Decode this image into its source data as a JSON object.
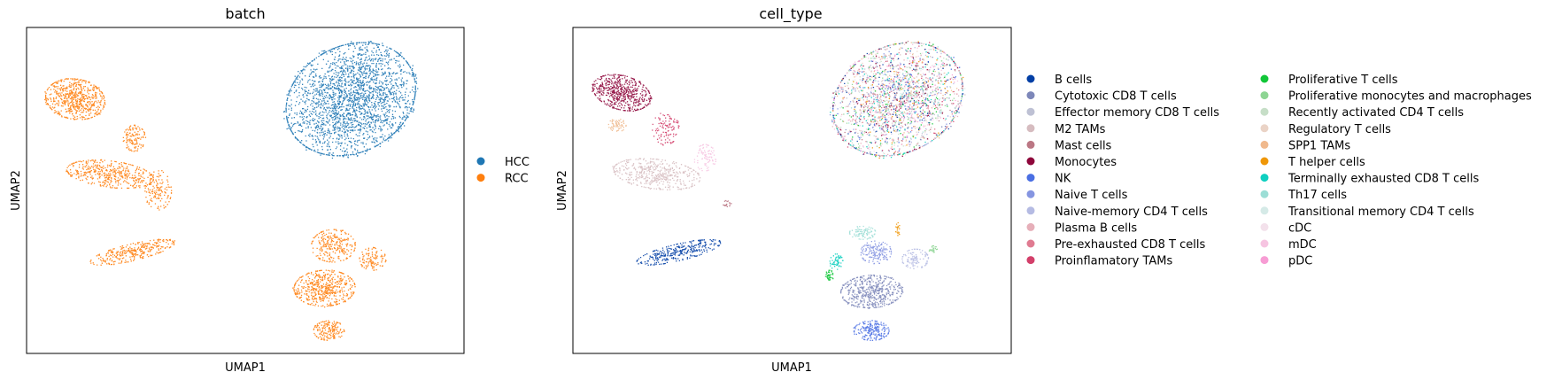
{
  "chart_data": [
    {
      "type": "scatter",
      "title": "batch",
      "xlabel": "UMAP1",
      "ylabel": "UMAP2",
      "grid": false,
      "legend_placement": "right",
      "series": [
        {
          "name": "HCC",
          "color": "#1f77b4"
        },
        {
          "name": "RCC",
          "color": "#ff7f0e"
        }
      ],
      "clusters": [
        {
          "series": "HCC",
          "cx": 0.74,
          "cy": 0.78,
          "rx": 0.14,
          "ry": 0.18,
          "n": 2600,
          "rot": -25
        },
        {
          "series": "RCC",
          "cx": 0.11,
          "cy": 0.78,
          "rx": 0.07,
          "ry": 0.06,
          "n": 650,
          "rot": -30
        },
        {
          "series": "RCC",
          "cx": 0.19,
          "cy": 0.55,
          "rx": 0.1,
          "ry": 0.04,
          "n": 450,
          "rot": -10
        },
        {
          "series": "RCC",
          "cx": 0.245,
          "cy": 0.66,
          "rx": 0.025,
          "ry": 0.04,
          "n": 120,
          "rot": 0
        },
        {
          "series": "RCC",
          "cx": 0.3,
          "cy": 0.5,
          "rx": 0.03,
          "ry": 0.06,
          "n": 130,
          "rot": 0
        },
        {
          "series": "RCC",
          "cx": 0.24,
          "cy": 0.31,
          "rx": 0.1,
          "ry": 0.025,
          "n": 320,
          "rot": 18
        },
        {
          "series": "RCC",
          "cx": 0.68,
          "cy": 0.2,
          "rx": 0.07,
          "ry": 0.055,
          "n": 520,
          "rot": 5
        },
        {
          "series": "RCC",
          "cx": 0.7,
          "cy": 0.33,
          "rx": 0.05,
          "ry": 0.05,
          "n": 260,
          "rot": 0
        },
        {
          "series": "RCC",
          "cx": 0.79,
          "cy": 0.29,
          "rx": 0.03,
          "ry": 0.035,
          "n": 110,
          "rot": 0
        },
        {
          "series": "RCC",
          "cx": 0.69,
          "cy": 0.07,
          "rx": 0.035,
          "ry": 0.03,
          "n": 170,
          "rot": 0
        }
      ]
    },
    {
      "type": "scatter",
      "title": "cell_type",
      "xlabel": "UMAP1",
      "ylabel": "UMAP2",
      "grid": false,
      "legend_placement": "right",
      "series": [
        {
          "name": "B cells",
          "color": "#023fa5"
        },
        {
          "name": "Cytotoxic CD8 T cells",
          "color": "#7d87b9"
        },
        {
          "name": "Effector memory CD8 T cells",
          "color": "#bec1d4"
        },
        {
          "name": "M2 TAMs",
          "color": "#d6bcc0"
        },
        {
          "name": "Mast cells",
          "color": "#bb7784"
        },
        {
          "name": "Monocytes",
          "color": "#8e063b"
        },
        {
          "name": "NK",
          "color": "#4a6fe3"
        },
        {
          "name": "Naive T cells",
          "color": "#8595e1"
        },
        {
          "name": "Naive-memory CD4 T cells",
          "color": "#b5bbe3"
        },
        {
          "name": "Plasma B cells",
          "color": "#e6afb9"
        },
        {
          "name": "Pre-exhausted CD8 T cells",
          "color": "#e07b91"
        },
        {
          "name": "Proinflamatory TAMs",
          "color": "#d33f6a"
        },
        {
          "name": "Proliferative T cells",
          "color": "#11c638"
        },
        {
          "name": "Proliferative monocytes and macrophages",
          "color": "#8dd593"
        },
        {
          "name": "Recently activated CD4 T cells",
          "color": "#c6dec7"
        },
        {
          "name": "Regulatory T cells",
          "color": "#ead3c6"
        },
        {
          "name": "SPP1 TAMs",
          "color": "#f0b98d"
        },
        {
          "name": "T helper cells",
          "color": "#ef9708"
        },
        {
          "name": "Terminally exhausted CD8 T cells",
          "color": "#0fcfc0"
        },
        {
          "name": "Th17 cells",
          "color": "#9cded6"
        },
        {
          "name": "Transitional memory CD4 T cells",
          "color": "#d5eae7"
        },
        {
          "name": "cDC",
          "color": "#f3e1eb"
        },
        {
          "name": "mDC",
          "color": "#f6c4e1"
        },
        {
          "name": "pDC",
          "color": "#f79cd4"
        }
      ],
      "clusters": [
        {
          "series": "mixed",
          "cx": 0.74,
          "cy": 0.78,
          "rx": 0.14,
          "ry": 0.18,
          "n": 2600,
          "rot": -25
        },
        {
          "series": "Monocytes",
          "cx": 0.11,
          "cy": 0.8,
          "rx": 0.07,
          "ry": 0.05,
          "n": 560,
          "rot": -30
        },
        {
          "series": "SPP1 TAMs",
          "cx": 0.1,
          "cy": 0.7,
          "rx": 0.02,
          "ry": 0.02,
          "n": 60,
          "rot": 0
        },
        {
          "series": "Proinflamatory TAMs",
          "cx": 0.21,
          "cy": 0.69,
          "rx": 0.03,
          "ry": 0.05,
          "n": 110,
          "rot": 0
        },
        {
          "series": "mDC",
          "cx": 0.3,
          "cy": 0.6,
          "rx": 0.025,
          "ry": 0.04,
          "n": 90,
          "rot": 0
        },
        {
          "series": "M2 TAMs",
          "cx": 0.19,
          "cy": 0.55,
          "rx": 0.1,
          "ry": 0.045,
          "n": 450,
          "rot": -10
        },
        {
          "series": "Mast cells",
          "cx": 0.35,
          "cy": 0.46,
          "rx": 0.01,
          "ry": 0.01,
          "n": 18,
          "rot": 0
        },
        {
          "series": "B cells",
          "cx": 0.24,
          "cy": 0.31,
          "rx": 0.1,
          "ry": 0.025,
          "n": 320,
          "rot": 18
        },
        {
          "series": "Cytotoxic CD8 T cells",
          "cx": 0.68,
          "cy": 0.19,
          "rx": 0.07,
          "ry": 0.05,
          "n": 520,
          "rot": 5
        },
        {
          "series": "Naive T cells",
          "cx": 0.69,
          "cy": 0.31,
          "rx": 0.035,
          "ry": 0.035,
          "n": 160,
          "rot": 0
        },
        {
          "series": "Naive-memory CD4 T cells",
          "cx": 0.78,
          "cy": 0.29,
          "rx": 0.03,
          "ry": 0.03,
          "n": 110,
          "rot": 0
        },
        {
          "series": "Th17 cells",
          "cx": 0.66,
          "cy": 0.37,
          "rx": 0.03,
          "ry": 0.02,
          "n": 90,
          "rot": 0
        },
        {
          "series": "Terminally exhausted CD8 T cells",
          "cx": 0.6,
          "cy": 0.28,
          "rx": 0.015,
          "ry": 0.025,
          "n": 60,
          "rot": 0
        },
        {
          "series": "Proliferative T cells",
          "cx": 0.585,
          "cy": 0.24,
          "rx": 0.01,
          "ry": 0.015,
          "n": 40,
          "rot": 0
        },
        {
          "series": "NK",
          "cx": 0.68,
          "cy": 0.07,
          "rx": 0.04,
          "ry": 0.03,
          "n": 200,
          "rot": 0
        },
        {
          "series": "T helper cells",
          "cx": 0.74,
          "cy": 0.38,
          "rx": 0.005,
          "ry": 0.02,
          "n": 20,
          "rot": 0
        },
        {
          "series": "Proliferative monocytes and macrophages",
          "cx": 0.82,
          "cy": 0.32,
          "rx": 0.01,
          "ry": 0.01,
          "n": 25,
          "rot": 0
        }
      ]
    }
  ]
}
